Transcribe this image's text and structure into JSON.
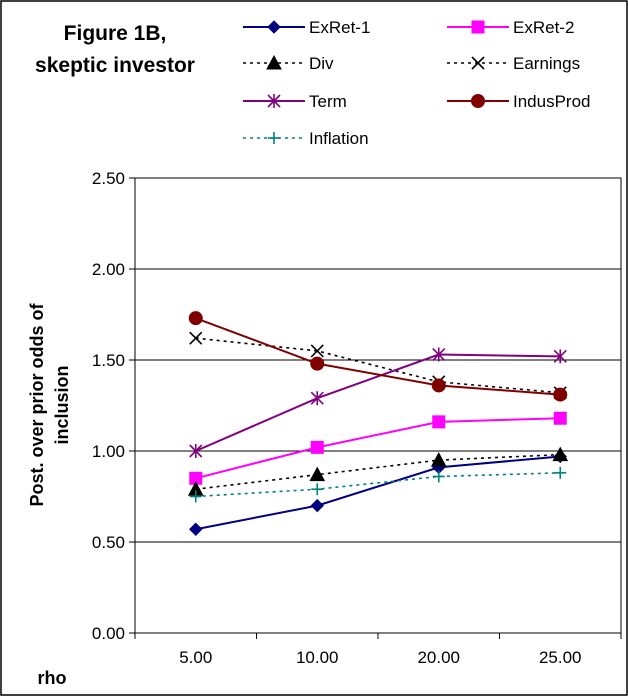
{
  "chart_data": {
    "type": "line",
    "title_line1": "Figure 1B,",
    "title_line2": "skeptic investor",
    "xlabel": "rho",
    "ylabel_line1": "Post. over prior odds of",
    "ylabel_line2": "inclusion",
    "categories": [
      "5.00",
      "10.00",
      "20.00",
      "25.00"
    ],
    "ylim": [
      0,
      2.5
    ],
    "yticks": [
      0,
      0.5,
      1,
      1.5,
      2,
      2.5
    ],
    "ytick_labels": [
      "0.00",
      "0.50",
      "1.00",
      "1.50",
      "2.00",
      "2.50"
    ],
    "grid": true,
    "legend_position": "top",
    "series": [
      {
        "name": "ExRet-1",
        "values": [
          0.57,
          0.7,
          0.91,
          0.97
        ],
        "color": "#000080",
        "dash": "solid",
        "marker": "diamond"
      },
      {
        "name": "ExRet-2",
        "values": [
          0.85,
          1.02,
          1.16,
          1.18
        ],
        "color": "#ff00ff",
        "dash": "solid",
        "marker": "square"
      },
      {
        "name": "Div",
        "values": [
          0.79,
          0.87,
          0.95,
          0.98
        ],
        "color": "#000000",
        "dash": "dotted",
        "marker": "triangle"
      },
      {
        "name": "Earnings",
        "values": [
          1.62,
          1.55,
          1.38,
          1.32
        ],
        "color": "#000000",
        "dash": "dotted",
        "marker": "x"
      },
      {
        "name": "Term",
        "values": [
          1.0,
          1.29,
          1.53,
          1.52
        ],
        "color": "#800080",
        "dash": "solid",
        "marker": "star"
      },
      {
        "name": "IndusProd",
        "values": [
          1.73,
          1.48,
          1.36,
          1.31
        ],
        "color": "#800000",
        "dash": "solid",
        "marker": "circle"
      },
      {
        "name": "Inflation",
        "values": [
          0.75,
          0.79,
          0.86,
          0.88
        ],
        "color": "#008080",
        "dash": "dotted",
        "marker": "plus"
      }
    ]
  }
}
